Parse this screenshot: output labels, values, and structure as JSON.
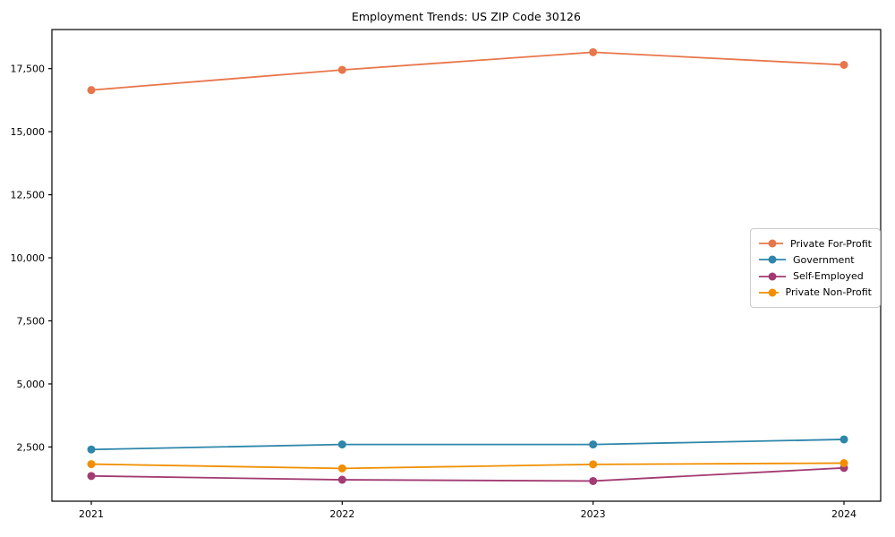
{
  "title": "Employment Trends: US ZIP Code 30126",
  "chart_data": {
    "type": "line",
    "title": "Employment Trends: US ZIP Code 30126",
    "x": [
      "2021",
      "2022",
      "2023",
      "2024"
    ],
    "series": [
      {
        "name": "Private For-Profit",
        "color": "#E8764B",
        "values": [
          16650,
          17450,
          18150,
          17650
        ]
      },
      {
        "name": "Government",
        "color": "#2E86AB",
        "values": [
          2400,
          2600,
          2600,
          2800
        ]
      },
      {
        "name": "Self-Employed",
        "color": "#A23B72",
        "values": [
          1350,
          1200,
          1150,
          1670
        ]
      },
      {
        "name": "Private Non-Profit",
        "color": "#F18F01",
        "values": [
          1820,
          1650,
          1810,
          1860
        ]
      }
    ],
    "xlabel": "",
    "ylabel": "",
    "ylim": [
      350,
      19050
    ],
    "yticks": [
      2500,
      5000,
      7500,
      10000,
      12500,
      15000,
      17500
    ],
    "ytick_labels": [
      "2,500",
      "5,000",
      "7,500",
      "10,000",
      "12,500",
      "15,000",
      "17,500"
    ],
    "xtick_labels": [
      "2021",
      "2022",
      "2023",
      "2024"
    ],
    "legend_position": "center right",
    "grid": false,
    "marker": "circle",
    "frame_color": "#000000",
    "background": "#ffffff"
  }
}
